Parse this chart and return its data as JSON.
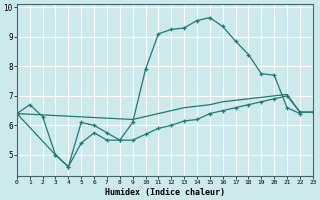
{
  "xlabel": "Humidex (Indice chaleur)",
  "bg_color": "#cce9eb",
  "grid_color": "#e8f8f8",
  "line_color": "#1e7a72",
  "line1_x": [
    0,
    1,
    2,
    3,
    4,
    5,
    6,
    7,
    8,
    9,
    10,
    11,
    12,
    13,
    14,
    15,
    16,
    17,
    18,
    19,
    20,
    21,
    22,
    23
  ],
  "line1_y": [
    6.4,
    6.7,
    6.3,
    5.0,
    4.6,
    6.1,
    6.0,
    5.75,
    5.5,
    6.1,
    7.9,
    9.1,
    9.25,
    9.3,
    9.55,
    9.65,
    9.35,
    8.85,
    8.4,
    7.75,
    7.7,
    6.6,
    6.4,
    null
  ],
  "line2_x": [
    0,
    3,
    4,
    5,
    6,
    7,
    8,
    9,
    10,
    11,
    12,
    13,
    14,
    15,
    16,
    17,
    18,
    19,
    20,
    21,
    22,
    23
  ],
  "line2_y": [
    6.4,
    5.0,
    4.6,
    5.4,
    5.75,
    5.5,
    5.5,
    5.5,
    5.7,
    5.9,
    6.0,
    6.15,
    6.2,
    6.4,
    6.5,
    6.6,
    6.7,
    6.8,
    6.9,
    7.0,
    6.45,
    6.45
  ],
  "line3_x": [
    0,
    9,
    10,
    11,
    12,
    13,
    14,
    15,
    16,
    17,
    18,
    19,
    20,
    21,
    22,
    23
  ],
  "line3_y": [
    6.4,
    6.2,
    6.3,
    6.4,
    6.5,
    6.6,
    6.65,
    6.7,
    6.8,
    6.85,
    6.9,
    6.95,
    7.0,
    7.05,
    6.45,
    6.45
  ],
  "xlim": [
    0,
    23
  ],
  "ylim": [
    4.3,
    10.1
  ],
  "yticks": [
    5,
    6,
    7,
    8,
    9,
    10
  ],
  "xticks": [
    0,
    1,
    2,
    3,
    4,
    5,
    6,
    7,
    8,
    9,
    10,
    11,
    12,
    13,
    14,
    15,
    16,
    17,
    18,
    19,
    20,
    21,
    22,
    23
  ]
}
